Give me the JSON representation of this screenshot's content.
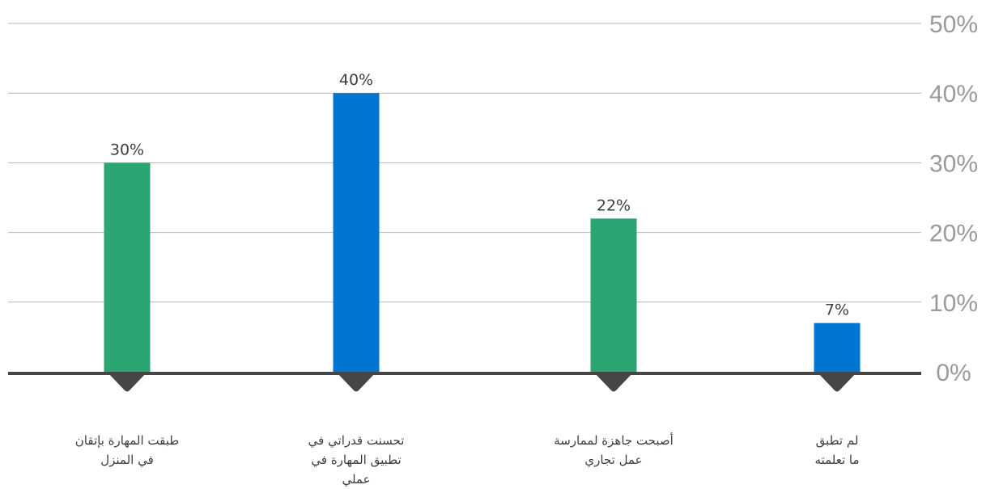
{
  "chart_data": {
    "type": "bar",
    "categories": [
      [
        "طبقت المهارة بإتقان",
        "في المنزل"
      ],
      [
        "تحسنت قدراتي في",
        "تطبيق المهارة في",
        "عملي"
      ],
      [
        "أصبحت جاهزة لممارسة",
        "عمل تجاري"
      ],
      [
        "لم تطبق",
        "ما تعلمته"
      ]
    ],
    "values": [
      30,
      40,
      22,
      7
    ],
    "data_labels": [
      "30%",
      "40%",
      "22%",
      "7%"
    ],
    "y_ticks": [
      "0%",
      "10%",
      "20%",
      "30%",
      "40%",
      "50%"
    ],
    "ylim": [
      0,
      50
    ],
    "grid": true,
    "colors": [
      "#2ba673",
      "#0075d2",
      "#2ba673",
      "#0075d2"
    ],
    "axis_color": "#464646",
    "grid_color": "#b5b5b5"
  }
}
